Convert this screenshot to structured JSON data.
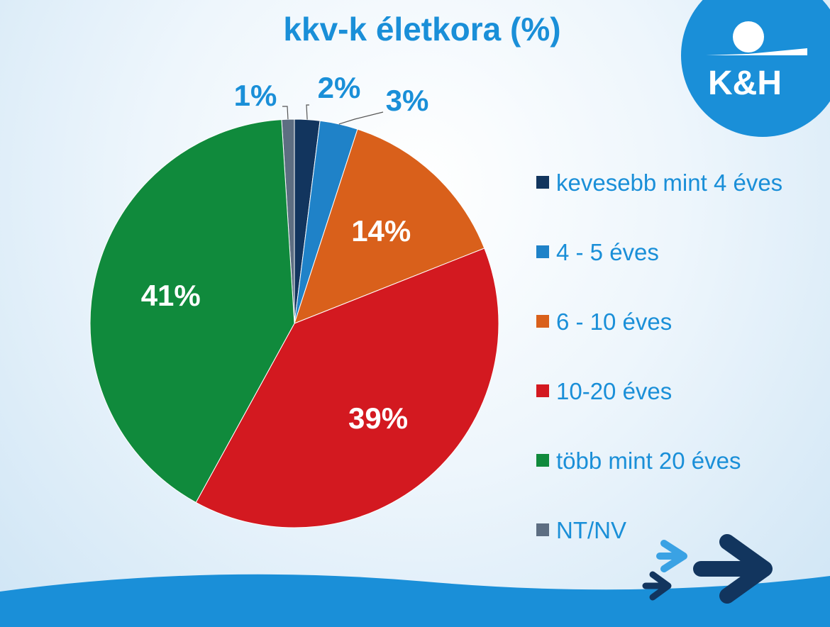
{
  "chart_data": {
    "type": "pie",
    "title": "kkv-k életkora (%)",
    "categories": [
      "kevesebb mint 4 éves",
      "4 - 5 éves",
      "6 - 10 éves",
      "10-20 éves",
      "több mint 20 éves",
      "NT/NV"
    ],
    "values": [
      2,
      3,
      14,
      39,
      41,
      1
    ],
    "value_labels": [
      "2%",
      "3%",
      "14%",
      "39%",
      "41%",
      "1%"
    ],
    "colors": [
      "#12355e",
      "#1f82c8",
      "#d9601b",
      "#d31920",
      "#108a3c",
      "#5d6e82"
    ],
    "legend_position": "right"
  },
  "brand": {
    "logo_text": "K&H",
    "logo_color": "#1a8fd8"
  },
  "accent_colors": {
    "title": "#1a8fd8",
    "label_outside": "#1a8fd8",
    "label_inside": "#ffffff"
  }
}
